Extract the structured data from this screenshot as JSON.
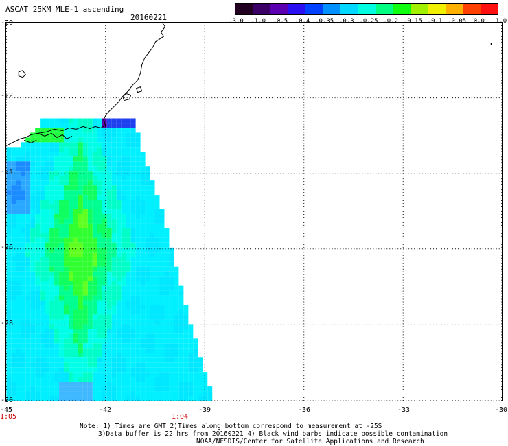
{
  "header": {
    "title": "ASCAT 25KM MLE-1 ascending",
    "date": "20160221"
  },
  "colorbar": {
    "labels": [
      "-3.0",
      "-1.0",
      "-0.5",
      "-0.4",
      "-0.35",
      "-0.3",
      "-0.25",
      "-0.2",
      "-0.15",
      "-0.1",
      "-0.05",
      "0.0",
      "1.0"
    ],
    "colors": [
      "#220022",
      "#3a0066",
      "#5a00b0",
      "#2a10f0",
      "#0040ff",
      "#0090ff",
      "#00d8ff",
      "#00ffe0",
      "#00ff80",
      "#10ff10",
      "#a0f000",
      "#f0f000",
      "#ffb000",
      "#ff4000",
      "#ff1010"
    ]
  },
  "map": {
    "lat_labels": [
      "-20",
      "-22",
      "-24",
      "-26",
      "-28",
      "-30"
    ],
    "lon_labels": [
      "-45",
      "-42",
      "-39",
      "-36",
      "-33",
      "-30"
    ],
    "times": [
      "1:05",
      "1:04"
    ]
  },
  "note": {
    "line1": "Note: 1) Times are GMT 2)Times along bottom correspond to measurement at -25S",
    "line2": "3)Data buffer is 22 hrs from 20160221 4) Black wind barbs indicate possible contamination",
    "line3": "NOAA/NESDIS/Center for Satellite Applications and Research"
  }
}
